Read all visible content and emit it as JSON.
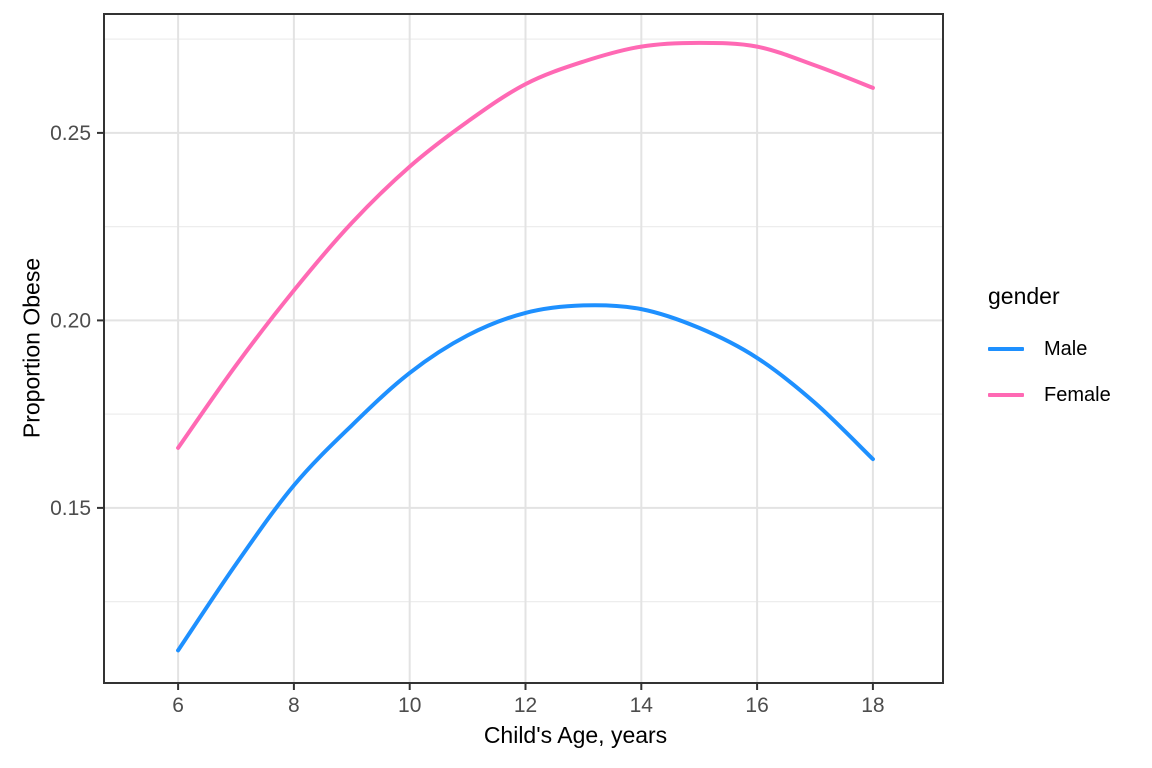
{
  "figure": {
    "background": "#FFFFFF"
  },
  "chart_data": {
    "type": "line",
    "x": [
      6,
      7,
      8,
      9,
      10,
      11,
      12,
      13,
      14,
      15,
      16,
      17,
      18
    ],
    "series": [
      {
        "name": "Male",
        "color": "#1E90FF",
        "values": [
          0.112,
          0.135,
          0.156,
          0.172,
          0.186,
          0.196,
          0.202,
          0.204,
          0.203,
          0.198,
          0.19,
          0.178,
          0.163
        ]
      },
      {
        "name": "Female",
        "color": "#FF69B4",
        "values": [
          0.166,
          0.188,
          0.208,
          0.226,
          0.241,
          0.253,
          0.263,
          0.269,
          0.273,
          0.274,
          0.273,
          0.268,
          0.262
        ]
      }
    ],
    "title": "",
    "xlabel": "Child's Age, years",
    "ylabel": "Proportion Obese",
    "xlim": [
      4.72,
      19.21
    ],
    "ylim": [
      0.1033,
      0.2817
    ],
    "x_ticks": {
      "values": [
        6,
        8,
        10,
        12,
        14,
        16,
        18
      ],
      "labels": [
        "6",
        "8",
        "10",
        "12",
        "14",
        "16",
        "18"
      ]
    },
    "y_ticks": {
      "values": [
        0.15,
        0.2,
        0.25
      ],
      "labels": [
        "0.15",
        "0.20",
        "0.25"
      ]
    },
    "y_minor": [
      0.125,
      0.175,
      0.225,
      0.275
    ],
    "grid": "on",
    "legend": {
      "title": "gender",
      "position": "right",
      "entries": [
        "Male",
        "Female"
      ]
    }
  },
  "style": {
    "grid_major_color": "#E3E3E3",
    "grid_minor_color": "#EDEDED",
    "panel_border_color": "#333333",
    "tick_color": "#333333",
    "tick_label_color": "#4D4D4D",
    "axis_title_color": "#000000",
    "line_width": 4
  }
}
